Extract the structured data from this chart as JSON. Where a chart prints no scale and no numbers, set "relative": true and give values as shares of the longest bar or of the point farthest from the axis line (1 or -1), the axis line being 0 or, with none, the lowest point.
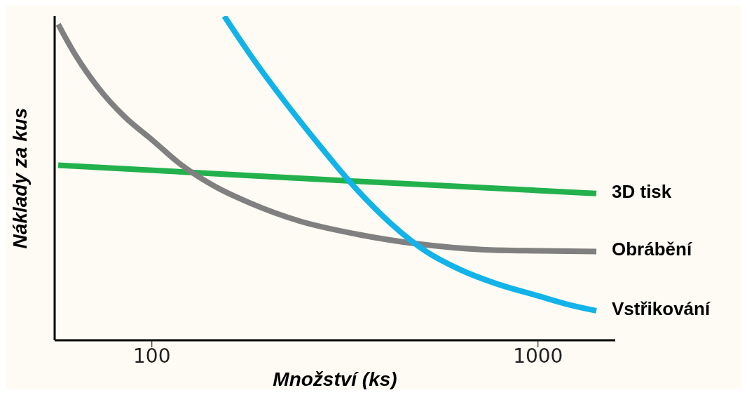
{
  "chart_data": {
    "type": "line",
    "xlabel": "Množství (ks)",
    "ylabel": "Náklady za kus",
    "relative": true,
    "log": "x",
    "xlim": [
      56,
      1585
    ],
    "xticks": [
      100,
      1000
    ],
    "legend": false,
    "grid": false,
    "line_style": "solid",
    "series": [
      {
        "name": "3D tisk",
        "color": "#22b14c",
        "x": [
          57.2,
          286,
          1416
        ],
        "values": [
          0.54,
          0.495,
          0.453
        ]
      },
      {
        "name": "Obrábění",
        "color": "#808080",
        "x": [
          57.2,
          63.4,
          72,
          84.9,
          100.4,
          118.6,
          146,
          180,
          241,
          337,
          491,
          715,
          1000,
          1416
        ],
        "values": [
          0.975,
          0.88,
          0.785,
          0.69,
          0.617,
          0.543,
          0.474,
          0.423,
          0.368,
          0.328,
          0.297,
          0.28,
          0.276,
          0.274
        ]
      },
      {
        "name": "Vstřikování",
        "color": "#12b3e8",
        "x": [
          154,
          180,
          222,
          274,
          337,
          416,
          513,
          631,
          778,
          1000,
          1183,
          1416
        ],
        "values": [
          1.0,
          0.88,
          0.733,
          0.596,
          0.469,
          0.36,
          0.274,
          0.217,
          0.175,
          0.137,
          0.112,
          0.091
        ]
      }
    ]
  }
}
